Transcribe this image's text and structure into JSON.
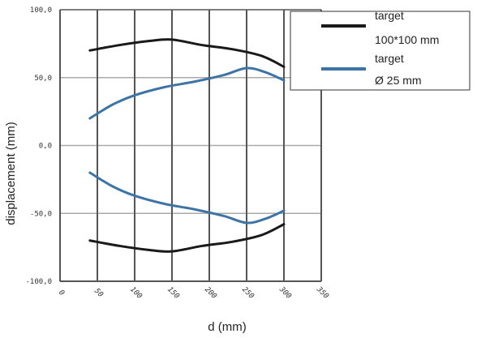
{
  "chart_data": {
    "type": "line",
    "xlabel": "d (mm)",
    "ylabel": "displacement (mm)",
    "xlim": [
      0,
      350
    ],
    "ylim": [
      -100,
      100
    ],
    "x_ticks": [
      0,
      50,
      100,
      150,
      200,
      250,
      300,
      350
    ],
    "x_tick_labels": [
      "0",
      "50",
      "100",
      "150",
      "200",
      "250",
      "300",
      "350"
    ],
    "y_ticks": [
      100,
      50,
      0,
      -50,
      -100
    ],
    "y_tick_labels": [
      "100,0",
      "50,0",
      "0,0",
      "-50,0",
      "-100,0"
    ],
    "grid": true,
    "legend_position": "top-right",
    "series": [
      {
        "name": "target 100*100 mm",
        "legend_lines": [
          "target",
          "100*100 mm"
        ],
        "color": "#1a1a1a",
        "upper": {
          "x": [
            40,
            80,
            120,
            150,
            190,
            230,
            270,
            300
          ],
          "y": [
            70,
            74,
            77,
            78,
            74,
            71,
            66,
            58
          ]
        },
        "lower": {
          "x": [
            40,
            80,
            120,
            150,
            190,
            230,
            270,
            300
          ],
          "y": [
            -70,
            -74,
            -77,
            -78,
            -74,
            -71,
            -66,
            -58
          ]
        }
      },
      {
        "name": "target Ø 25 mm",
        "legend_lines": [
          "target",
          "Ø 25 mm"
        ],
        "color": "#3d74a6",
        "upper": {
          "x": [
            40,
            70,
            100,
            140,
            180,
            220,
            250,
            275,
            300
          ],
          "y": [
            20,
            30,
            37,
            43,
            47,
            52,
            57,
            54,
            48
          ]
        },
        "lower": {
          "x": [
            40,
            70,
            100,
            140,
            180,
            220,
            250,
            275,
            300
          ],
          "y": [
            -20,
            -30,
            -37,
            -43,
            -47,
            -52,
            -57,
            -54,
            -48
          ]
        }
      }
    ]
  }
}
